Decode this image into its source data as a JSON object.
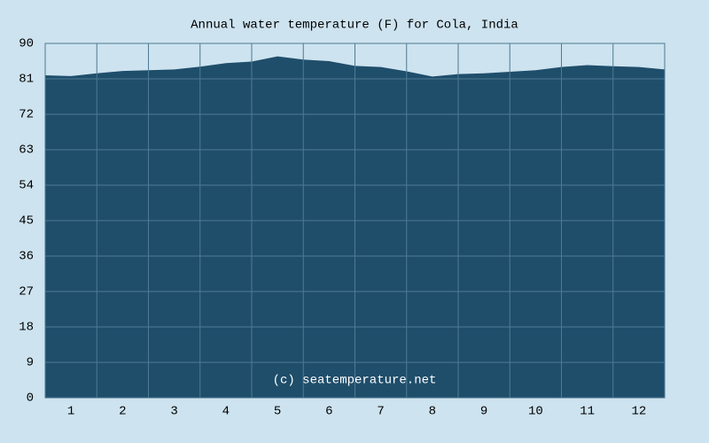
{
  "chart_data": {
    "type": "area",
    "title": "Annual water temperature (F) for Cola, India",
    "watermark": "(c) seatemperature.net",
    "x": [
      0.5,
      1,
      1.5,
      2,
      2.5,
      3,
      3.5,
      4,
      4.5,
      5,
      5.5,
      6,
      6.5,
      7,
      7.5,
      8,
      8.5,
      9,
      9.5,
      10,
      10.5,
      11,
      11.5,
      12,
      12.5
    ],
    "values": [
      81.9,
      81.7,
      82.4,
      83.0,
      83.2,
      83.4,
      84.1,
      85.0,
      85.4,
      86.7,
      85.9,
      85.5,
      84.3,
      84.0,
      82.9,
      81.6,
      82.2,
      82.4,
      82.8,
      83.2,
      84.0,
      84.5,
      84.2,
      84.0,
      83.4
    ],
    "color": "#1f4e6b",
    "xlim": [
      0.5,
      12.5
    ],
    "xticks": [
      1,
      2,
      3,
      4,
      5,
      6,
      7,
      8,
      9,
      10,
      11,
      12
    ],
    "ylim": [
      0,
      90
    ],
    "yticks": [
      0,
      9,
      18,
      27,
      36,
      45,
      54,
      63,
      72,
      81,
      90
    ],
    "grid": true
  }
}
